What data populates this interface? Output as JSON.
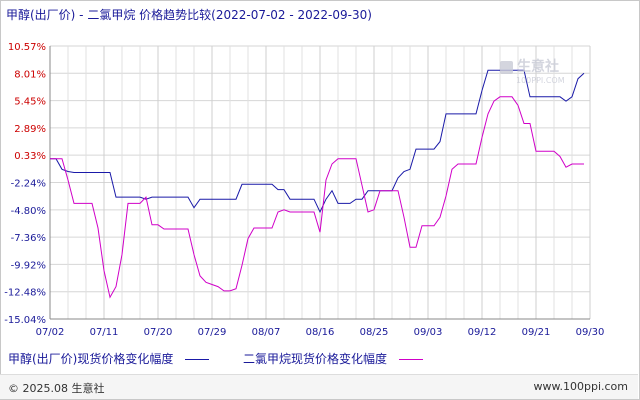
{
  "title": "甲醇(出厂价) - 二氯甲烷 价格趋势比较(2022-07-02 - 2022-09-30)",
  "watermark": {
    "brand": "生意社",
    "url": "100PPI.COM"
  },
  "footer": {
    "left": "© 2025.08 生意社",
    "right": "www.100ppi.com"
  },
  "chart_data": {
    "type": "line",
    "ylim": [
      -15.04,
      10.57
    ],
    "y_ticks": [
      "10.57%",
      "8.01%",
      "5.45%",
      "2.89%",
      "0.33%",
      "-2.24%",
      "-4.80%",
      "-7.36%",
      "-9.92%",
      "-12.48%",
      "-15.04%"
    ],
    "y_tick_values": [
      10.57,
      8.01,
      5.45,
      2.89,
      0.33,
      -2.24,
      -4.8,
      -7.36,
      -9.92,
      -12.48,
      -15.04
    ],
    "x_ticks": [
      "07/02",
      "07/11",
      "07/20",
      "07/29",
      "08/07",
      "08/16",
      "08/25",
      "09/03",
      "09/12",
      "09/21",
      "09/30"
    ],
    "x_days": 90,
    "grid": true,
    "legend_position": "bottom",
    "series": [
      {
        "name": "甲醇(出厂价)现货价格变化幅度",
        "color": "#1a1aa8",
        "points": [
          [
            0,
            0
          ],
          [
            1,
            0
          ],
          [
            2,
            -1
          ],
          [
            3,
            -1.2
          ],
          [
            4,
            -1.3
          ],
          [
            5,
            -1.3
          ],
          [
            6,
            -1.3
          ],
          [
            7,
            -1.3
          ],
          [
            8,
            -1.3
          ],
          [
            9,
            -1.3
          ],
          [
            10,
            -1.3
          ],
          [
            11,
            -3.6
          ],
          [
            12,
            -3.6
          ],
          [
            13,
            -3.6
          ],
          [
            14,
            -3.6
          ],
          [
            15,
            -3.6
          ],
          [
            16,
            -3.8
          ],
          [
            17,
            -3.6
          ],
          [
            18,
            -3.6
          ],
          [
            19,
            -3.6
          ],
          [
            20,
            -3.6
          ],
          [
            21,
            -3.6
          ],
          [
            22,
            -3.6
          ],
          [
            23,
            -3.6
          ],
          [
            24,
            -4.6
          ],
          [
            25,
            -3.8
          ],
          [
            26,
            -3.8
          ],
          [
            27,
            -3.8
          ],
          [
            28,
            -3.8
          ],
          [
            29,
            -3.8
          ],
          [
            30,
            -3.8
          ],
          [
            31,
            -3.8
          ],
          [
            32,
            -2.4
          ],
          [
            33,
            -2.4
          ],
          [
            34,
            -2.4
          ],
          [
            35,
            -2.4
          ],
          [
            36,
            -2.4
          ],
          [
            37,
            -2.4
          ],
          [
            38,
            -2.9
          ],
          [
            39,
            -2.9
          ],
          [
            40,
            -3.8
          ],
          [
            41,
            -3.8
          ],
          [
            42,
            -3.8
          ],
          [
            43,
            -3.8
          ],
          [
            44,
            -3.8
          ],
          [
            45,
            -5.0
          ],
          [
            46,
            -3.8
          ],
          [
            47,
            -3.0
          ],
          [
            48,
            -4.2
          ],
          [
            49,
            -4.2
          ],
          [
            50,
            -4.2
          ],
          [
            51,
            -3.8
          ],
          [
            52,
            -3.8
          ],
          [
            53,
            -3.0
          ],
          [
            54,
            -3.0
          ],
          [
            55,
            -3.0
          ],
          [
            56,
            -3.0
          ],
          [
            57,
            -3.0
          ],
          [
            58,
            -1.8
          ],
          [
            59,
            -1.2
          ],
          [
            60,
            -1.0
          ],
          [
            61,
            0.9
          ],
          [
            62,
            0.9
          ],
          [
            63,
            0.9
          ],
          [
            64,
            0.9
          ],
          [
            65,
            1.6
          ],
          [
            66,
            4.2
          ],
          [
            67,
            4.2
          ],
          [
            68,
            4.2
          ],
          [
            69,
            4.2
          ],
          [
            70,
            4.2
          ],
          [
            71,
            4.2
          ],
          [
            72,
            6.4
          ],
          [
            73,
            8.3
          ],
          [
            74,
            8.3
          ],
          [
            75,
            8.3
          ],
          [
            76,
            8.3
          ],
          [
            77,
            8.3
          ],
          [
            78,
            8.3
          ],
          [
            79,
            8.3
          ],
          [
            80,
            5.8
          ],
          [
            81,
            5.8
          ],
          [
            82,
            5.8
          ],
          [
            83,
            5.8
          ],
          [
            84,
            5.8
          ],
          [
            85,
            5.8
          ],
          [
            86,
            5.4
          ],
          [
            87,
            5.8
          ],
          [
            88,
            7.5
          ],
          [
            89,
            8.01
          ]
        ]
      },
      {
        "name": "二氯甲烷现货价格变化幅度",
        "color": "#d000c8",
        "points": [
          [
            0,
            0
          ],
          [
            1,
            0
          ],
          [
            2,
            0
          ],
          [
            3,
            -2.0
          ],
          [
            4,
            -4.2
          ],
          [
            5,
            -4.2
          ],
          [
            6,
            -4.2
          ],
          [
            7,
            -4.2
          ],
          [
            8,
            -6.5
          ],
          [
            9,
            -10.5
          ],
          [
            10,
            -13.0
          ],
          [
            11,
            -12.0
          ],
          [
            12,
            -9.0
          ],
          [
            13,
            -4.2
          ],
          [
            14,
            -4.2
          ],
          [
            15,
            -4.2
          ],
          [
            16,
            -3.6
          ],
          [
            17,
            -6.2
          ],
          [
            18,
            -6.2
          ],
          [
            19,
            -6.6
          ],
          [
            20,
            -6.6
          ],
          [
            21,
            -6.6
          ],
          [
            22,
            -6.6
          ],
          [
            23,
            -6.6
          ],
          [
            24,
            -9.0
          ],
          [
            25,
            -11.0
          ],
          [
            26,
            -11.6
          ],
          [
            27,
            -11.8
          ],
          [
            28,
            -12.0
          ],
          [
            29,
            -12.4
          ],
          [
            30,
            -12.4
          ],
          [
            31,
            -12.2
          ],
          [
            32,
            -10.0
          ],
          [
            33,
            -7.5
          ],
          [
            34,
            -6.5
          ],
          [
            35,
            -6.5
          ],
          [
            36,
            -6.5
          ],
          [
            37,
            -6.5
          ],
          [
            38,
            -5.0
          ],
          [
            39,
            -4.8
          ],
          [
            40,
            -5.0
          ],
          [
            41,
            -5.0
          ],
          [
            42,
            -5.0
          ],
          [
            43,
            -5.0
          ],
          [
            44,
            -5.0
          ],
          [
            45,
            -6.9
          ],
          [
            46,
            -2.0
          ],
          [
            47,
            -0.5
          ],
          [
            48,
            0.0
          ],
          [
            49,
            0.0
          ],
          [
            50,
            0.0
          ],
          [
            51,
            0.0
          ],
          [
            52,
            -2.5
          ],
          [
            53,
            -5.0
          ],
          [
            54,
            -4.8
          ],
          [
            55,
            -3.0
          ],
          [
            56,
            -3.0
          ],
          [
            57,
            -3.0
          ],
          [
            58,
            -3.0
          ],
          [
            59,
            -5.5
          ],
          [
            60,
            -8.3
          ],
          [
            61,
            -8.3
          ],
          [
            62,
            -6.3
          ],
          [
            63,
            -6.3
          ],
          [
            64,
            -6.3
          ],
          [
            65,
            -5.5
          ],
          [
            66,
            -3.5
          ],
          [
            67,
            -1.0
          ],
          [
            68,
            -0.5
          ],
          [
            69,
            -0.5
          ],
          [
            70,
            -0.5
          ],
          [
            71,
            -0.5
          ],
          [
            72,
            2.0
          ],
          [
            73,
            4.2
          ],
          [
            74,
            5.4
          ],
          [
            75,
            5.8
          ],
          [
            76,
            5.8
          ],
          [
            77,
            5.8
          ],
          [
            78,
            5.0
          ],
          [
            79,
            3.3
          ],
          [
            80,
            3.3
          ],
          [
            81,
            0.7
          ],
          [
            82,
            0.7
          ],
          [
            83,
            0.7
          ],
          [
            84,
            0.7
          ],
          [
            85,
            0.2
          ],
          [
            86,
            -0.8
          ],
          [
            87,
            -0.5
          ],
          [
            88,
            -0.5
          ],
          [
            89,
            -0.5
          ]
        ]
      }
    ]
  }
}
